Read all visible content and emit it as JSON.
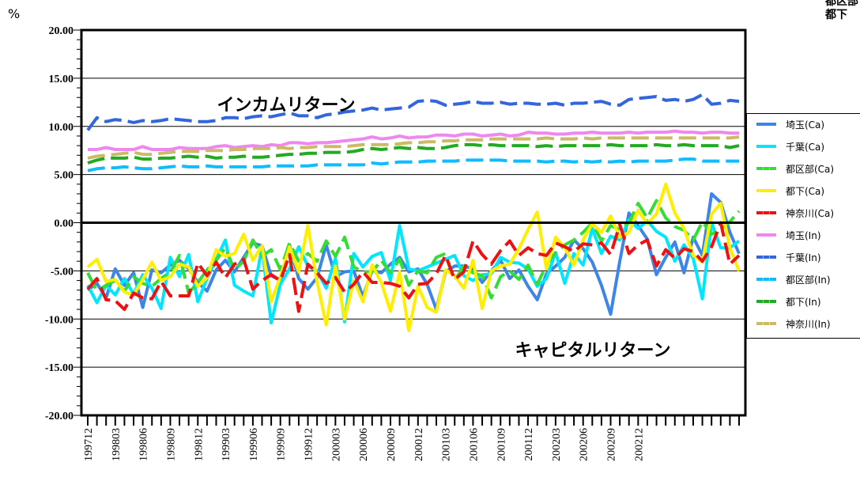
{
  "page": {
    "unit_label": "%",
    "corner_text": [
      "都区部",
      "都下"
    ]
  },
  "chart_data": {
    "type": "line",
    "ylim": [
      -20,
      20
    ],
    "yticks": [
      "20.00",
      "15.00",
      "10.00",
      "5.00",
      "0.00",
      "-5.00",
      "-10.00",
      "-15.00",
      "-20.00"
    ],
    "xticks": [
      "199712",
      "199803",
      "199806",
      "199809",
      "199812",
      "199903",
      "199906",
      "199909",
      "199912",
      "200003",
      "200006",
      "200009",
      "200012",
      "200103",
      "200106",
      "200109",
      "200112",
      "200203",
      "200206",
      "200209",
      "200212"
    ],
    "annotations": [
      "インカムリターン",
      "キャピタルリターン"
    ],
    "grid": "horizontal",
    "legend": "right",
    "series": [
      {
        "name": "埼玉(Ca)",
        "color": "#3d85e6",
        "dashed": false,
        "values": [
          -7.0,
          -6.3,
          -7.8,
          -4.8,
          -6.5,
          -5.2,
          -8.8,
          -4.9,
          -5.2,
          -4.4,
          -3.9,
          -4.8,
          -6.2,
          -7.1,
          -4.9,
          -3.9,
          -5.1,
          -3.6,
          -2.1,
          -2.4,
          -5.5,
          -6.0,
          -2.3,
          -5.8,
          -6.9,
          -5.7,
          -2.3,
          -5.6,
          -5.1,
          -5.0,
          -7.7,
          -4.9,
          -5.2,
          -4.3,
          -3.6,
          -5.1,
          -4.8,
          -6.4,
          -9.0,
          -5.1,
          -4.5,
          -4.5,
          -4.8,
          -6.2,
          -5.0,
          -3.9,
          -5.8,
          -4.9,
          -6.6,
          -8.0,
          -5.3,
          -4.5,
          -3.6,
          -1.8,
          -2.7,
          -4.1,
          -6.5,
          -9.5,
          -4.0,
          1.0,
          -0.3,
          -1.7,
          -5.4,
          -3.6,
          -2.0,
          -5.2,
          -1.5,
          -3.4,
          3.0,
          2.1,
          -1.0,
          -3.2
        ]
      },
      {
        "name": "千葉(Ca)",
        "color": "#00e6ff",
        "dashed": false,
        "values": [
          -6.5,
          -8.3,
          -6.5,
          -7.5,
          -5.8,
          -7.4,
          -5.4,
          -6.8,
          -8.9,
          -3.6,
          -5.6,
          -3.3,
          -8.2,
          -5.8,
          -3.8,
          -1.8,
          -6.5,
          -7.1,
          -7.6,
          -2.6,
          -10.4,
          -6.4,
          -4.8,
          -2.5,
          -4.5,
          -5.0,
          -6.8,
          -3.7,
          -10.3,
          -3.2,
          -4.6,
          -3.5,
          -3.1,
          -6.0,
          -0.3,
          -4.8,
          -5.0,
          -4.6,
          -4.2,
          -3.8,
          -3.4,
          -5.5,
          -6.0,
          -5.4,
          -5.3,
          -3.6,
          -4.1,
          -4.2,
          -4.8,
          -6.6,
          -5.8,
          -3.1,
          -6.3,
          -3.2,
          -4.4,
          -0.6,
          -3.2,
          -1.4,
          -1.8,
          0.3,
          -0.6,
          0.2,
          -0.9,
          -1.5,
          -4.0,
          -2.3,
          -3.7,
          -7.9,
          0.0,
          -2.6,
          -2.6,
          -1.9
        ]
      },
      {
        "name": "都区部(Ca)",
        "color": "#33dd33",
        "dashed": true,
        "values": [
          -5.2,
          -7.1,
          -6.5,
          -6.0,
          -7.1,
          -5.6,
          -6.3,
          -6.6,
          -5.8,
          -5.1,
          -3.4,
          -7.3,
          -6.2,
          -4.9,
          -3.9,
          -2.6,
          -4.9,
          -4.0,
          -1.8,
          -3.5,
          -2.8,
          -4.9,
          -2.1,
          -4.0,
          -3.2,
          -4.0,
          -1.9,
          -3.5,
          -1.5,
          -4.6,
          -5.1,
          -5.1,
          -3.9,
          -5.2,
          -3.8,
          -6.5,
          -5.0,
          -5.2,
          -3.6,
          -3.2,
          -6.0,
          -4.5,
          -5.2,
          -5.5,
          -7.8,
          -5.6,
          -5.0,
          -5.9,
          -4.4,
          -6.4,
          -4.4,
          -3.1,
          -2.3,
          -1.8,
          -1.0,
          0.0,
          -1.9,
          -0.3,
          -0.7,
          0.0,
          2.0,
          0.5,
          2.3,
          0.5,
          -0.4,
          -0.8,
          -1.8,
          0.1,
          -1.2,
          -0.7,
          0.1,
          1.2
        ]
      },
      {
        "name": "都下(Ca)",
        "color": "#ffee00",
        "dashed": false,
        "values": [
          -4.6,
          -3.8,
          -6.1,
          -5.9,
          -7.2,
          -7.5,
          -5.9,
          -4.1,
          -6.0,
          -5.6,
          -4.3,
          -4.6,
          -6.6,
          -5.7,
          -2.8,
          -3.5,
          -3.2,
          -1.2,
          -3.9,
          -2.4,
          -8.2,
          -5.6,
          -2.5,
          -5.1,
          -0.3,
          -6.1,
          -10.6,
          -4.5,
          -10.0,
          -6.0,
          -8.2,
          -4.4,
          -6.2,
          -9.2,
          -5.1,
          -11.2,
          -6.6,
          -8.8,
          -9.3,
          -4.9,
          -5.5,
          -6.8,
          -3.9,
          -8.9,
          -5.0,
          -4.5,
          -4.3,
          -2.7,
          -0.7,
          1.1,
          -4.8,
          -1.5,
          -2.6,
          -4.4,
          -1.8,
          -0.1,
          -1.0,
          0.7,
          -1.5,
          -1.0,
          1.3,
          -0.1,
          0.9,
          4.0,
          1.0,
          -0.6,
          -3.4,
          -4.1,
          0.9,
          2.0,
          -2.6,
          -5.0
        ]
      },
      {
        "name": "神奈川(Ca)",
        "color": "#ee1111",
        "dashed": true,
        "values": [
          -6.9,
          -5.8,
          -8.0,
          -8.1,
          -9.0,
          -7.3,
          -7.8,
          -7.9,
          -6.1,
          -7.6,
          -7.6,
          -7.6,
          -4.2,
          -5.5,
          -4.1,
          -5.7,
          -4.3,
          -3.8,
          -6.9,
          -6.0,
          -5.4,
          -6.0,
          -3.3,
          -9.2,
          -4.3,
          -5.2,
          -6.3,
          -5.7,
          -7.2,
          -6.4,
          -5.1,
          -6.2,
          -6.2,
          -6.3,
          -6.6,
          -7.8,
          -6.4,
          -6.3,
          -5.3,
          -3.4,
          -5.9,
          -5.1,
          -1.9,
          -3.3,
          -4.3,
          -2.9,
          -1.9,
          -3.4,
          -2.6,
          -3.2,
          -3.4,
          -2.1,
          -2.5,
          -3.0,
          -2.2,
          -2.3,
          -2.1,
          -3.3,
          -0.2,
          -3.2,
          -2.3,
          -1.8,
          -4.5,
          -2.8,
          -3.7,
          -2.7,
          -3.0,
          -4.0,
          -2.5,
          0.0,
          -4.3,
          -3.4
        ]
      },
      {
        "name": "埼玉(In)",
        "color": "#ee88ee",
        "dashed": false,
        "values": [
          7.6,
          7.6,
          7.8,
          7.6,
          7.6,
          7.6,
          7.9,
          7.6,
          7.6,
          7.6,
          7.8,
          7.7,
          7.7,
          7.7,
          7.9,
          8.0,
          7.8,
          7.9,
          8.0,
          7.9,
          8.1,
          8.0,
          8.3,
          8.3,
          8.2,
          8.3,
          8.3,
          8.4,
          8.5,
          8.6,
          8.7,
          8.9,
          8.7,
          8.8,
          9.0,
          8.8,
          8.9,
          8.9,
          9.1,
          9.1,
          9.0,
          9.2,
          9.2,
          9.0,
          9.1,
          9.2,
          9.0,
          9.1,
          9.4,
          9.3,
          9.3,
          9.2,
          9.2,
          9.3,
          9.3,
          9.4,
          9.3,
          9.3,
          9.3,
          9.4,
          9.3,
          9.4,
          9.4,
          9.4,
          9.5,
          9.4,
          9.4,
          9.3,
          9.4,
          9.4,
          9.3,
          9.3
        ]
      },
      {
        "name": "千葉(In)",
        "color": "#3366dd",
        "dashed": true,
        "values": [
          9.6,
          10.9,
          10.5,
          10.7,
          10.6,
          10.4,
          10.6,
          10.5,
          10.6,
          10.8,
          10.7,
          10.6,
          10.5,
          10.5,
          10.6,
          10.9,
          10.9,
          10.8,
          11.0,
          11.1,
          11.0,
          11.2,
          11.4,
          11.1,
          11.1,
          10.9,
          11.2,
          11.3,
          11.5,
          11.6,
          11.7,
          11.9,
          11.7,
          11.8,
          11.9,
          12.0,
          12.6,
          12.7,
          12.6,
          12.2,
          12.3,
          12.4,
          12.6,
          12.4,
          12.4,
          12.5,
          12.3,
          12.4,
          12.4,
          12.3,
          12.3,
          12.4,
          12.2,
          12.4,
          12.4,
          12.5,
          12.6,
          12.3,
          12.2,
          12.8,
          12.9,
          13.0,
          13.1,
          12.7,
          12.8,
          12.6,
          12.8,
          13.3,
          12.3,
          12.4,
          12.7,
          12.6
        ]
      },
      {
        "name": "都区部(In)",
        "color": "#11bbff",
        "dashed": true,
        "values": [
          5.4,
          5.6,
          5.7,
          5.7,
          5.8,
          5.7,
          5.6,
          5.6,
          5.7,
          5.8,
          5.9,
          5.8,
          5.8,
          5.9,
          5.8,
          5.8,
          5.8,
          5.8,
          5.8,
          5.8,
          5.9,
          5.9,
          5.9,
          5.9,
          5.9,
          6.0,
          6.0,
          6.0,
          6.0,
          6.0,
          6.0,
          6.2,
          6.1,
          6.2,
          6.3,
          6.3,
          6.3,
          6.4,
          6.4,
          6.4,
          6.4,
          6.5,
          6.5,
          6.5,
          6.5,
          6.5,
          6.4,
          6.4,
          6.4,
          6.4,
          6.3,
          6.4,
          6.4,
          6.3,
          6.4,
          6.3,
          6.4,
          6.3,
          6.4,
          6.3,
          6.4,
          6.4,
          6.4,
          6.4,
          6.5,
          6.6,
          6.6,
          6.4,
          6.4,
          6.4,
          6.4,
          6.4
        ]
      },
      {
        "name": "都下(In)",
        "color": "#22aa22",
        "dashed": true,
        "values": [
          6.2,
          6.5,
          6.7,
          6.7,
          6.7,
          6.8,
          6.6,
          6.6,
          6.7,
          6.7,
          6.8,
          6.9,
          6.8,
          6.9,
          6.7,
          6.8,
          6.8,
          6.9,
          6.8,
          6.8,
          6.9,
          7.0,
          7.1,
          7.1,
          7.2,
          7.2,
          7.3,
          7.3,
          7.3,
          7.4,
          7.6,
          7.7,
          7.6,
          7.7,
          7.8,
          7.7,
          7.8,
          7.7,
          7.7,
          7.8,
          8.0,
          8.1,
          8.1,
          8.0,
          8.1,
          8.0,
          8.0,
          8.0,
          8.0,
          7.9,
          8.0,
          7.9,
          8.0,
          8.0,
          8.0,
          8.0,
          8.0,
          8.1,
          8.0,
          8.0,
          8.0,
          8.0,
          8.1,
          8.0,
          8.0,
          8.1,
          8.0,
          8.0,
          8.0,
          8.0,
          7.8,
          8.0
        ]
      },
      {
        "name": "神奈川(In)",
        "color": "#ccbb66",
        "dashed": true,
        "values": [
          6.7,
          6.9,
          7.0,
          7.1,
          7.2,
          7.3,
          7.1,
          7.1,
          7.2,
          7.3,
          7.4,
          7.4,
          7.4,
          7.5,
          7.5,
          7.5,
          7.6,
          7.6,
          7.7,
          7.7,
          7.7,
          7.8,
          7.7,
          7.8,
          7.8,
          7.9,
          7.9,
          7.9,
          7.9,
          8.0,
          8.1,
          8.1,
          8.1,
          8.1,
          8.2,
          8.3,
          8.3,
          8.4,
          8.4,
          8.5,
          8.5,
          8.6,
          8.6,
          8.6,
          8.7,
          8.7,
          8.7,
          8.7,
          8.7,
          8.7,
          8.8,
          8.7,
          8.7,
          8.7,
          8.8,
          8.7,
          8.8,
          8.8,
          8.8,
          8.8,
          8.8,
          8.8,
          8.8,
          8.8,
          8.8,
          8.8,
          8.8,
          8.8,
          8.8,
          8.8,
          8.8,
          8.9
        ]
      }
    ]
  }
}
